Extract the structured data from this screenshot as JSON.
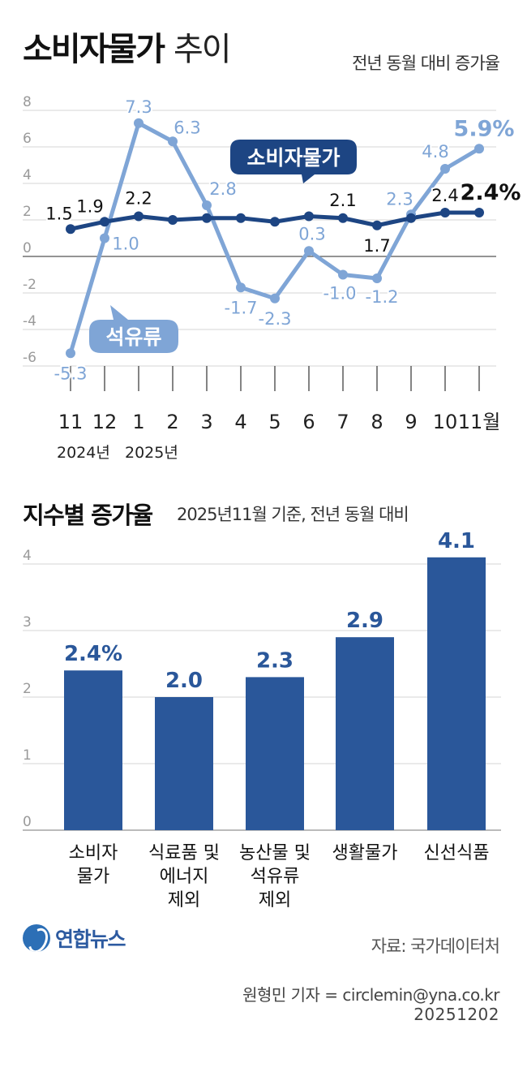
{
  "header": {
    "title_bold": "소비자물가",
    "title_regular": "추이",
    "subtitle": "전년 동월 대비 증가율"
  },
  "section2": {
    "title": "지수별 증가율",
    "subtitle": "2025년11월 기준, 전년 동월 대비"
  },
  "footer": {
    "logo": "연합뉴스",
    "source": "자료: 국가데이터처",
    "reporter": "원형민 기자 = circlemin@yna.co.kr",
    "date": "20251202"
  },
  "colors": {
    "cpi": "#1d4583",
    "oil": "#7fa5d6",
    "bar": "#2a579a",
    "grid": "#d4d4d4",
    "tick": "#9a9a9a"
  },
  "chart_data": [
    {
      "type": "line",
      "ylim": [
        -6,
        8
      ],
      "yticks": [
        8,
        6,
        4,
        2,
        0,
        -2,
        -4,
        -6
      ],
      "x": [
        "11",
        "12",
        "1",
        "2",
        "3",
        "4",
        "5",
        "6",
        "7",
        "8",
        "9",
        "10",
        "11월"
      ],
      "year_labels": [
        {
          "index": 0,
          "text": "2024년"
        },
        {
          "index": 2,
          "text": "2025년"
        }
      ],
      "series": [
        {
          "name": "소비자물가",
          "values": [
            1.5,
            1.9,
            2.2,
            2.0,
            2.1,
            2.1,
            1.9,
            2.2,
            2.1,
            1.7,
            2.1,
            2.4,
            2.4
          ],
          "labels": [
            "1.5",
            "1.9",
            "2.2",
            "",
            "",
            "",
            "",
            "",
            "2.1",
            "1.7",
            "",
            "2.4",
            "2.4%"
          ]
        },
        {
          "name": "석유류",
          "values": [
            -5.3,
            1.0,
            7.3,
            6.3,
            2.8,
            -1.7,
            -2.3,
            0.3,
            -1.0,
            -1.2,
            2.3,
            4.8,
            5.9
          ],
          "labels": [
            "-5.3",
            "1.0",
            "7.3",
            "6.3",
            "2.8",
            "-1.7",
            "-2.3",
            "0.3",
            "-1.0",
            "-1.2",
            "2.3",
            "4.8",
            "5.9%"
          ]
        }
      ]
    },
    {
      "type": "bar",
      "ylim": [
        0,
        4
      ],
      "yticks": [
        4,
        3,
        2,
        1,
        0
      ],
      "categories": [
        [
          "소비자",
          "물가"
        ],
        [
          "식료품 및",
          "에너지",
          "제외"
        ],
        [
          "농산물 및",
          "석유류",
          "제외"
        ],
        [
          "생활물가"
        ],
        [
          "신선식품"
        ]
      ],
      "values": [
        2.4,
        2.0,
        2.3,
        2.9,
        4.1
      ],
      "labels": [
        "2.4%",
        "2.0",
        "2.3",
        "2.9",
        "4.1"
      ]
    }
  ]
}
